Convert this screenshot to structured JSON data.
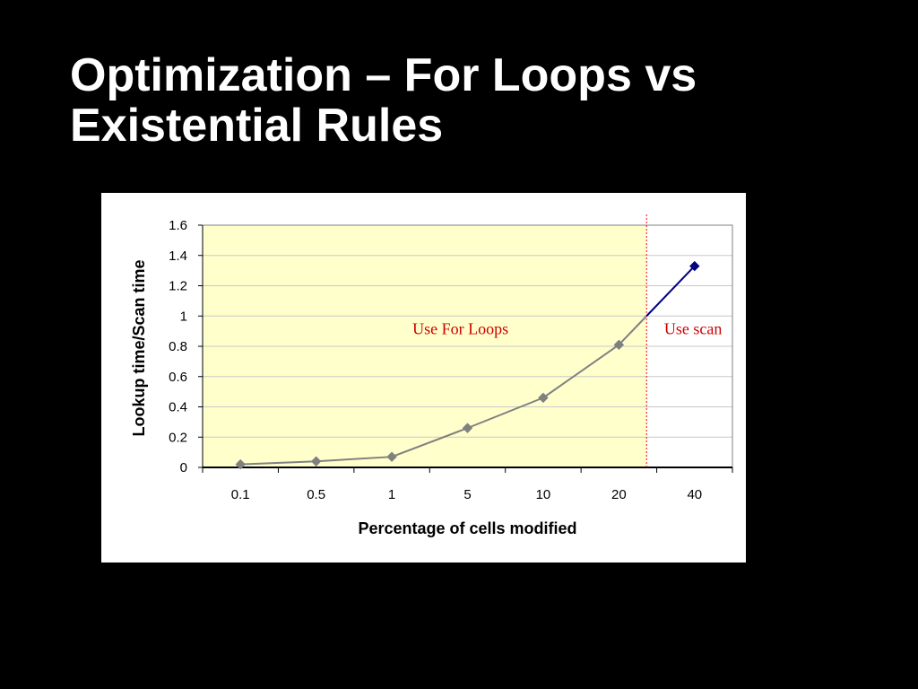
{
  "slide": {
    "title_line1": "Optimization – For Loops vs",
    "title_line2": "Existential Rules"
  },
  "chart_data": {
    "type": "line",
    "title": "",
    "xlabel": "Percentage of cells modified",
    "ylabel": "Lookup time/Scan time",
    "categories": [
      "0.1",
      "0.5",
      "1",
      "5",
      "10",
      "20",
      "40"
    ],
    "ylim": [
      0,
      1.6
    ],
    "yticks": [
      "0",
      "0.2",
      "0.4",
      "0.6",
      "0.8",
      "1",
      "1.2",
      "1.4",
      "1.6"
    ],
    "grid": true,
    "legend": "none",
    "series": [
      {
        "values": [
          0.02,
          0.04,
          0.07,
          0.26,
          0.46,
          0.81,
          1.33
        ],
        "color": "#808080",
        "highlight_last_color": "#000080"
      }
    ],
    "threshold_y": 1.0,
    "annotations": [
      {
        "text": "Use For Loops",
        "color": "#cc0000"
      },
      {
        "text": "Use scan",
        "color": "#cc0000"
      }
    ],
    "regions": {
      "for_loops_fill": "#ffffcc",
      "divider_color": "#ff0000"
    }
  }
}
